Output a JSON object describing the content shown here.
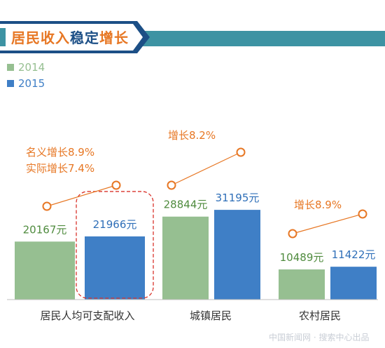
{
  "title": {
    "part1": "居民收入",
    "part2": "稳定",
    "part3": "增长"
  },
  "colors": {
    "series_2014": "#96bf91",
    "series_2015": "#3f7fc6",
    "label_2014": "#4f8b3e",
    "label_2015": "#2f6fb8",
    "growth": "#e77724",
    "header_blue": "#1c4f86",
    "header_teal": "#3d93a3",
    "highlight_box": "#d9332b"
  },
  "chart_data": {
    "type": "bar",
    "categories": [
      "居民人均可支配收入",
      "城镇居民",
      "农村居民"
    ],
    "series": [
      {
        "name": "2014",
        "values": [
          20167,
          28844,
          10489
        ],
        "labels": [
          "20167元",
          "28844元",
          "10489元"
        ]
      },
      {
        "name": "2015",
        "values": [
          21966,
          31195,
          11422
        ],
        "labels": [
          "21966元",
          "31195元",
          "11422元"
        ]
      }
    ],
    "growth_annotations": [
      [
        "名义增长8.9%",
        "实际增长7.4%"
      ],
      [
        "增长8.2%"
      ],
      [
        "增长8.9%"
      ]
    ],
    "legend_position": "top-left",
    "grid": false
  },
  "watermark": "中国新闻网 · 搜索中心出品"
}
